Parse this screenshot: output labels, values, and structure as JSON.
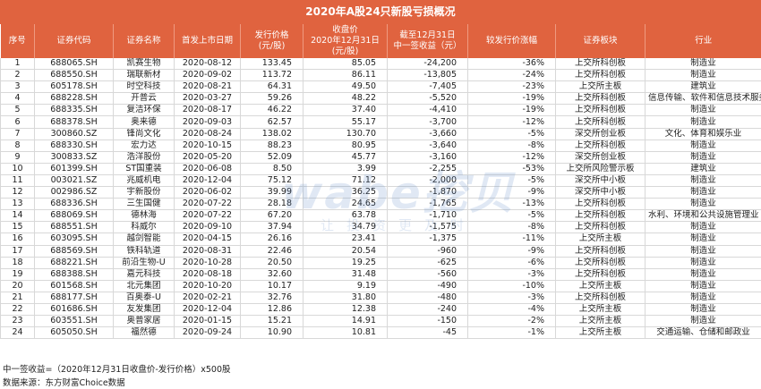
{
  "title": "2020年A股24只新股亏损概况",
  "headers": [
    "序号",
    "证券代码",
    "证券名称",
    "首发上市日期",
    "发行价格\n(元/股)",
    "收盘价\n2020年12月31日\n(元/股)",
    "截至12月31日\n中一签收益（元）",
    "较发行价涨幅",
    "证券板块",
    "行业"
  ],
  "rows": [
    [
      "1",
      "688065.SH",
      "凯赛生物",
      "2020-08-12",
      "133.45",
      "85.05",
      "-24,200",
      "-36%",
      "上交所科创板",
      "制造业"
    ],
    [
      "2",
      "688550.SH",
      "瑞联新材",
      "2020-09-02",
      "113.72",
      "86.11",
      "-13,805",
      "-24%",
      "上交所科创板",
      "制造业"
    ],
    [
      "3",
      "605178.SH",
      "时空科技",
      "2020-08-21",
      "64.31",
      "49.50",
      "-7,405",
      "-23%",
      "上交所主板",
      "建筑业"
    ],
    [
      "4",
      "688228.SH",
      "开普云",
      "2020-03-27",
      "59.26",
      "48.22",
      "-5,520",
      "-19%",
      "上交所科创板",
      "信息传输、软件和信息技术服务业"
    ],
    [
      "5",
      "688335.SH",
      "复洁环保",
      "2020-08-17",
      "46.22",
      "37.40",
      "-4,410",
      "-19%",
      "上交所科创板",
      "制造业"
    ],
    [
      "6",
      "688378.SH",
      "奥来德",
      "2020-09-03",
      "62.57",
      "55.17",
      "-3,700",
      "-12%",
      "上交所科创板",
      "制造业"
    ],
    [
      "7",
      "300860.SZ",
      "锋尚文化",
      "2020-08-24",
      "138.02",
      "130.70",
      "-3,660",
      "-5%",
      "深交所创业板",
      "文化、体育和娱乐业"
    ],
    [
      "8",
      "688330.SH",
      "宏力达",
      "2020-10-15",
      "88.23",
      "80.95",
      "-3,640",
      "-8%",
      "上交所科创板",
      "制造业"
    ],
    [
      "9",
      "300833.SZ",
      "浩洋股份",
      "2020-05-20",
      "52.09",
      "45.77",
      "-3,160",
      "-12%",
      "深交所创业板",
      "制造业"
    ],
    [
      "10",
      "601399.SH",
      "ST国重装",
      "2020-06-08",
      "8.50",
      "3.99",
      "-2,255",
      "-53%",
      "上交所风险警示板",
      "建筑业"
    ],
    [
      "11",
      "003021.SZ",
      "兆威机电",
      "2020-12-04",
      "75.12",
      "71.12",
      "-2,000",
      "-5%",
      "深交所中小板",
      "制造业"
    ],
    [
      "12",
      "002986.SZ",
      "宇新股份",
      "2020-06-02",
      "39.99",
      "36.25",
      "-1,870",
      "-9%",
      "深交所中小板",
      "制造业"
    ],
    [
      "13",
      "688336.SH",
      "三生国健",
      "2020-07-22",
      "28.18",
      "24.65",
      "-1,765",
      "-13%",
      "上交所科创板",
      "制造业"
    ],
    [
      "14",
      "688069.SH",
      "德林海",
      "2020-07-22",
      "67.20",
      "63.78",
      "-1,710",
      "-5%",
      "上交所科创板",
      "水利、环境和公共设施管理业"
    ],
    [
      "15",
      "688551.SH",
      "科威尔",
      "2020-09-10",
      "37.94",
      "34.79",
      "-1,575",
      "-8%",
      "上交所科创板",
      "制造业"
    ],
    [
      "16",
      "603095.SH",
      "越剑智能",
      "2020-04-15",
      "26.16",
      "23.41",
      "-1,375",
      "-11%",
      "上交所主板",
      "制造业"
    ],
    [
      "17",
      "688569.SH",
      "铁科轨道",
      "2020-08-31",
      "22.46",
      "20.54",
      "-960",
      "-9%",
      "上交所科创板",
      "制造业"
    ],
    [
      "18",
      "688221.SH",
      "前沿生物-U",
      "2020-10-28",
      "20.50",
      "19.25",
      "-625",
      "-6%",
      "上交所科创板",
      "制造业"
    ],
    [
      "19",
      "688388.SH",
      "嘉元科技",
      "2020-08-18",
      "32.60",
      "31.48",
      "-560",
      "-3%",
      "上交所科创板",
      "制造业"
    ],
    [
      "20",
      "601568.SH",
      "北元集团",
      "2020-10-20",
      "10.17",
      "9.19",
      "-490",
      "-10%",
      "上交所主板",
      "制造业"
    ],
    [
      "21",
      "688177.SH",
      "百奥泰-U",
      "2020-02-21",
      "32.76",
      "31.80",
      "-480",
      "-3%",
      "上交所科创板",
      "制造业"
    ],
    [
      "22",
      "601686.SH",
      "友发集团",
      "2020-12-04",
      "12.86",
      "12.38",
      "-240",
      "-4%",
      "上交所主板",
      "制造业"
    ],
    [
      "23",
      "603551.SH",
      "奥普家居",
      "2020-01-15",
      "15.21",
      "14.91",
      "-150",
      "-2%",
      "上交所主板",
      "制造业"
    ],
    [
      "24",
      "605050.SH",
      "福然德",
      "2020-09-24",
      "10.90",
      "10.81",
      "-45",
      "-1%",
      "上交所主板",
      "交通运输、仓储和邮政业"
    ]
  ],
  "footnote_formula": "中一签收益=（2020年12月31日收盘价-发行价格）x500股",
  "footnote_source": "数据来源：东方财富Choice数据",
  "watermark": {
    "main": "wabe挖贝",
    "sub": "让投资更及时"
  },
  "colors": {
    "header": "#e0633f",
    "border": "#d8d8d8"
  }
}
